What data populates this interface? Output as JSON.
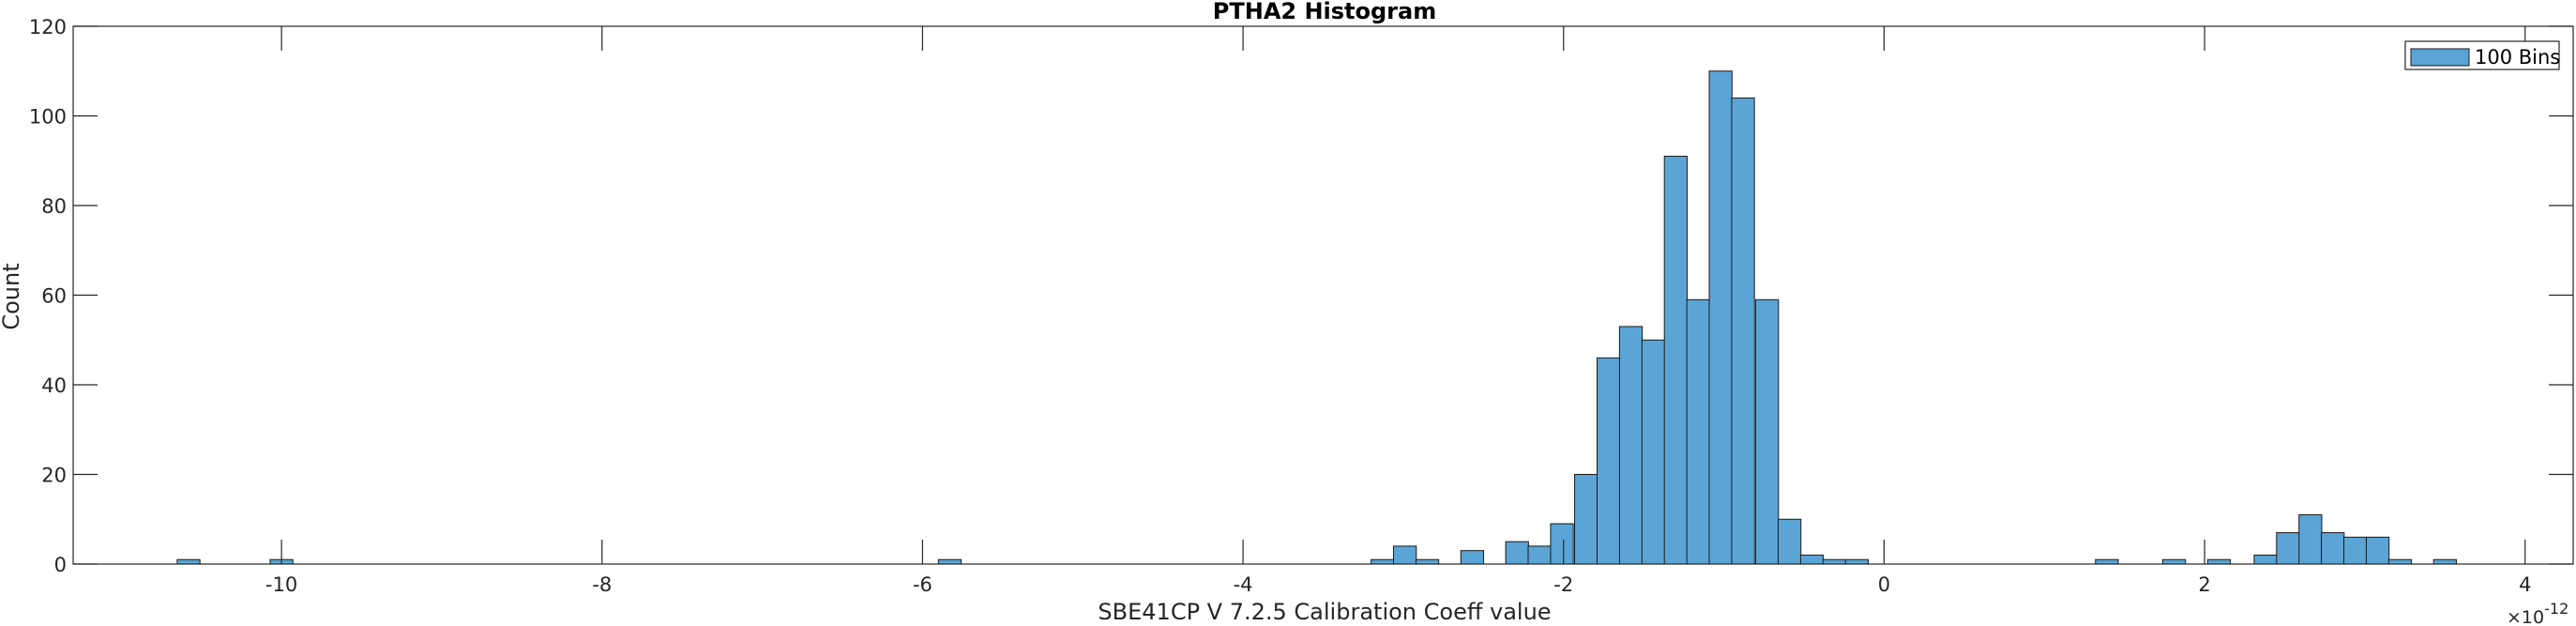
{
  "chart_data": {
    "type": "bar",
    "title": "PTHA2 Histogram",
    "xlabel": "SBE41CP V 7.2.5 Calibration Coeff value",
    "ylabel": "Count",
    "x_exponent_base": "×10",
    "x_exponent_power": "-12",
    "xlim": [
      -11.3,
      4.3
    ],
    "ylim": [
      0,
      120
    ],
    "xticks": [
      -10,
      -8,
      -6,
      -4,
      -2,
      0,
      2,
      4
    ],
    "yticks": [
      0,
      20,
      40,
      60,
      80,
      100,
      120
    ],
    "bin_width": 0.142,
    "grid": false,
    "legend": {
      "label": "100 Bins",
      "position": "top-right"
    },
    "color": "#5ba4d6",
    "edge_color": "#1a1a1a",
    "bins": [
      {
        "x": -10.58,
        "count": 1
      },
      {
        "x": -10.0,
        "count": 1
      },
      {
        "x": -5.83,
        "count": 1
      },
      {
        "x": -3.13,
        "count": 1
      },
      {
        "x": -2.99,
        "count": 4
      },
      {
        "x": -2.85,
        "count": 1
      },
      {
        "x": -2.57,
        "count": 3
      },
      {
        "x": -2.29,
        "count": 5
      },
      {
        "x": -2.15,
        "count": 4
      },
      {
        "x": -2.01,
        "count": 9
      },
      {
        "x": -1.86,
        "count": 20
      },
      {
        "x": -1.72,
        "count": 46
      },
      {
        "x": -1.58,
        "count": 53
      },
      {
        "x": -1.44,
        "count": 50
      },
      {
        "x": -1.3,
        "count": 91
      },
      {
        "x": -1.16,
        "count": 59
      },
      {
        "x": -1.02,
        "count": 110
      },
      {
        "x": -0.88,
        "count": 104
      },
      {
        "x": -0.73,
        "count": 59
      },
      {
        "x": -0.59,
        "count": 10
      },
      {
        "x": -0.45,
        "count": 2
      },
      {
        "x": -0.31,
        "count": 1
      },
      {
        "x": -0.17,
        "count": 1
      },
      {
        "x": 1.39,
        "count": 1
      },
      {
        "x": 1.81,
        "count": 1
      },
      {
        "x": 2.09,
        "count": 1
      },
      {
        "x": 2.38,
        "count": 2
      },
      {
        "x": 2.52,
        "count": 7
      },
      {
        "x": 2.66,
        "count": 11
      },
      {
        "x": 2.8,
        "count": 7
      },
      {
        "x": 2.94,
        "count": 6
      },
      {
        "x": 3.08,
        "count": 6
      },
      {
        "x": 3.22,
        "count": 1
      },
      {
        "x": 3.5,
        "count": 1
      }
    ]
  }
}
